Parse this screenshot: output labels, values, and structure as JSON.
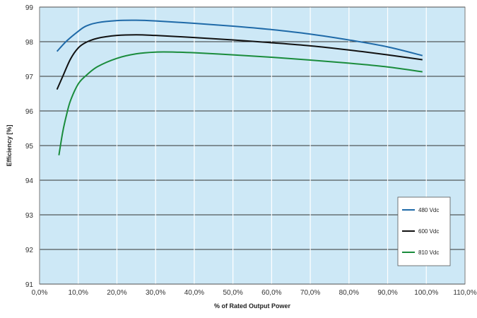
{
  "chart_data": {
    "type": "line",
    "title": "",
    "xlabel": "% of Rated Output Power",
    "ylabel": "Efficiency [%]",
    "xlim": [
      0,
      110
    ],
    "ylim": [
      91,
      99
    ],
    "x_ticks": [
      0,
      10,
      20,
      30,
      40,
      50,
      60,
      70,
      80,
      90,
      100,
      110
    ],
    "x_tick_labels": [
      "0,0%",
      "10,0%",
      "20,0%",
      "30,0%",
      "40,0%",
      "50,0%",
      "60,0%",
      "70,0%",
      "80,0%",
      "90,0%",
      "100,0%",
      "110,0%"
    ],
    "y_ticks": [
      91,
      92,
      93,
      94,
      95,
      96,
      97,
      98,
      99
    ],
    "y_tick_labels": [
      "91",
      "92",
      "93",
      "94",
      "95",
      "96",
      "97",
      "98",
      "99"
    ],
    "grid": true,
    "legend_position": "bottom-right",
    "background": "#cde8f6",
    "series": [
      {
        "name": "480 Vdc",
        "color": "#1f6aa8",
        "x": [
          4.5,
          7,
          10,
          12,
          15,
          20,
          25,
          30,
          40,
          50,
          60,
          70,
          80,
          90,
          99
        ],
        "y": [
          97.72,
          98.02,
          98.3,
          98.45,
          98.55,
          98.61,
          98.62,
          98.6,
          98.53,
          98.45,
          98.35,
          98.22,
          98.05,
          97.85,
          97.6
        ]
      },
      {
        "name": "600 Vdc",
        "color": "#111111",
        "x": [
          4.5,
          6,
          8,
          10,
          12,
          15,
          20,
          25,
          30,
          40,
          50,
          60,
          70,
          80,
          90,
          99
        ],
        "y": [
          96.62,
          97.0,
          97.5,
          97.82,
          97.98,
          98.1,
          98.18,
          98.2,
          98.18,
          98.12,
          98.05,
          97.97,
          97.88,
          97.76,
          97.62,
          97.48
        ]
      },
      {
        "name": "810 Vdc",
        "color": "#1a8c3c",
        "x": [
          5,
          6,
          7,
          8,
          10,
          12,
          15,
          20,
          25,
          30,
          35,
          40,
          50,
          60,
          70,
          80,
          90,
          99
        ],
        "y": [
          94.72,
          95.4,
          95.9,
          96.3,
          96.78,
          97.02,
          97.28,
          97.52,
          97.65,
          97.7,
          97.7,
          97.68,
          97.62,
          97.55,
          97.47,
          97.38,
          97.27,
          97.13
        ]
      }
    ]
  }
}
